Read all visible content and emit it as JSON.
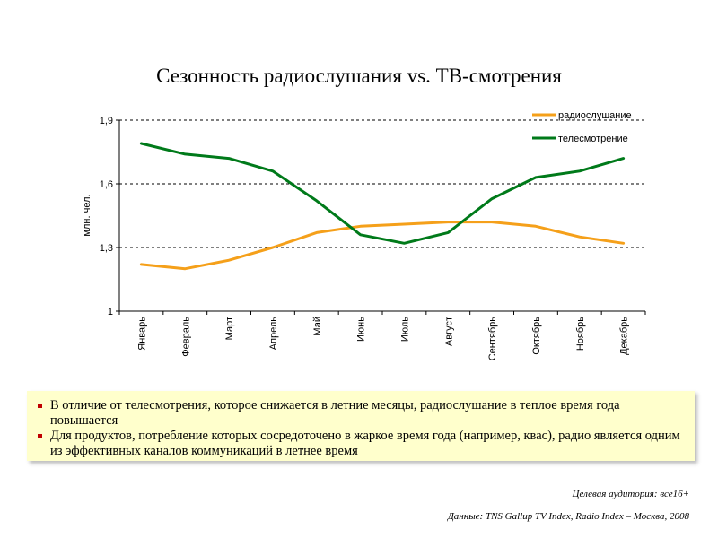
{
  "chart_data": {
    "type": "line",
    "title": "Сезонность радиослушания  vs. ТВ-смотрения",
    "ylabel": "млн. чел.",
    "ylim": [
      1,
      1.9
    ],
    "yticks": [
      1,
      1.3,
      1.6,
      1.9
    ],
    "ytick_labels": [
      "1",
      "1,3",
      "1,6",
      "1,9"
    ],
    "grid": "horizontal dashed",
    "legend_position": "top-right",
    "categories": [
      "Январь",
      "Февраль",
      "Март",
      "Апрель",
      "Май",
      "Июнь",
      "Июль",
      "Август",
      "Сентябрь",
      "Октябрь",
      "Ноябрь",
      "Декабрь"
    ],
    "series": [
      {
        "name": "радиослушание",
        "color": "#f5a01a",
        "values": [
          1.22,
          1.2,
          1.24,
          1.3,
          1.37,
          1.4,
          1.41,
          1.42,
          1.42,
          1.4,
          1.35,
          1.32
        ]
      },
      {
        "name": "телесмотрение",
        "color": "#007a1a",
        "values": [
          1.79,
          1.74,
          1.72,
          1.66,
          1.52,
          1.36,
          1.32,
          1.37,
          1.53,
          1.63,
          1.66,
          1.72
        ]
      }
    ]
  },
  "notes": [
    "В отличие от телесмотрения, которое снижается в летние месяцы, радиослушание в теплое время года повышается",
    "Для продуктов, потребление которых сосредоточено в жаркое время года (например, квас), радио является одним из эффективных каналов коммуникаций  в летнее время"
  ],
  "footer": {
    "audience": "Целевая аудитория: все16+",
    "source": "Данные: TNS Gallup TV Index, Radio Index – Москва, 2008"
  }
}
